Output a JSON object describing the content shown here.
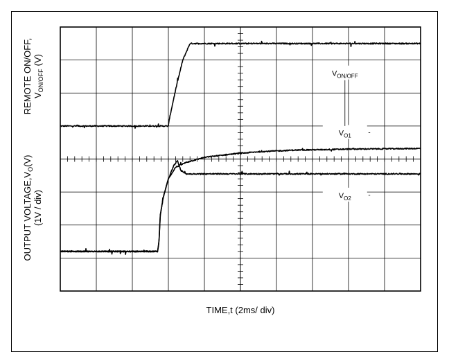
{
  "chart_data": {
    "type": "line",
    "title": "",
    "xlabel": "TIME,t (2ms/ div)",
    "ylabel_top": {
      "main": "REMOTE ON/OFF,",
      "sym": "V",
      "sub": "ON/OFF",
      "unit": "(V)"
    },
    "ylabel_bottom": {
      "main": "OUTPUT VOLTAGE,",
      "sym": "V",
      "sub": "O",
      "unit": "(V)",
      "scale": "(1V / div)"
    },
    "x_divisions": 10,
    "y_divisions": 8,
    "xlim": [
      0,
      20
    ],
    "ylim": [
      0,
      8
    ],
    "grid": true,
    "series": [
      {
        "name": "V",
        "sub": "ON/OFF",
        "x": [
          0,
          6.0,
          6.05,
          6.4,
          6.8,
          7.2,
          7.5,
          8.0,
          20
        ],
        "y": [
          5.0,
          5.0,
          5.2,
          6.1,
          7.0,
          7.5,
          7.5,
          7.5,
          7.5
        ]
      },
      {
        "name": "V",
        "sub": "O1",
        "x": [
          0,
          5.4,
          5.48,
          5.55,
          5.7,
          6.0,
          6.4,
          7.0,
          8.0,
          9.5,
          11.0,
          13.0,
          16.0,
          20
        ],
        "y": [
          1.2,
          1.2,
          1.5,
          2.3,
          2.8,
          3.4,
          3.75,
          3.9,
          4.05,
          4.15,
          4.22,
          4.27,
          4.3,
          4.32
        ]
      },
      {
        "name": "V",
        "sub": "O2",
        "x": [
          0,
          5.4,
          5.48,
          5.55,
          5.7,
          6.0,
          6.3,
          6.5,
          6.7,
          7.0,
          8.0,
          20
        ],
        "y": [
          1.2,
          1.2,
          1.5,
          2.3,
          2.8,
          3.4,
          3.8,
          3.95,
          3.65,
          3.55,
          3.55,
          3.55
        ]
      }
    ],
    "annotations": [
      {
        "series": 0,
        "name": "V",
        "sub": "ON/OFF",
        "x": 15.8,
        "y": 6.6
      },
      {
        "series": 1,
        "name": "V",
        "sub": "O1",
        "x": 15.8,
        "y": 4.8
      },
      {
        "series": 2,
        "name": "V",
        "sub": "O2",
        "x": 15.8,
        "y": 2.9
      }
    ]
  }
}
